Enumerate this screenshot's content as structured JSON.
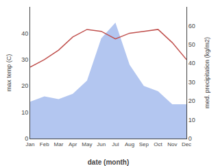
{
  "chart_data": {
    "type": "line",
    "xlabel": "date (month)",
    "ylabel": "max temp (C)",
    "y2label": "med. precipitation (kg/m2)",
    "categories": [
      "Jan",
      "Feb",
      "Mar",
      "Apr",
      "May",
      "Jun",
      "Jul",
      "Aug",
      "Sep",
      "Oct",
      "Nov",
      "Dec"
    ],
    "series": [
      {
        "type": "area",
        "color": "#b3c6f0",
        "values": [
          14,
          16,
          15,
          17,
          22,
          38,
          44,
          28,
          20,
          18,
          13,
          13
        ]
      },
      {
        "type": "line",
        "color": "#c0504d",
        "axis": "y2",
        "values": [
          38,
          42,
          47,
          54,
          58,
          57,
          53,
          56,
          57,
          58,
          51,
          42
        ]
      }
    ],
    "ylim": [
      0,
      50
    ],
    "yticks": [
      0,
      10,
      20,
      30,
      40
    ],
    "y2lim": [
      0,
      70
    ],
    "y2ticks": [
      0,
      10,
      20,
      30,
      40,
      50,
      60
    ],
    "grid": false
  }
}
